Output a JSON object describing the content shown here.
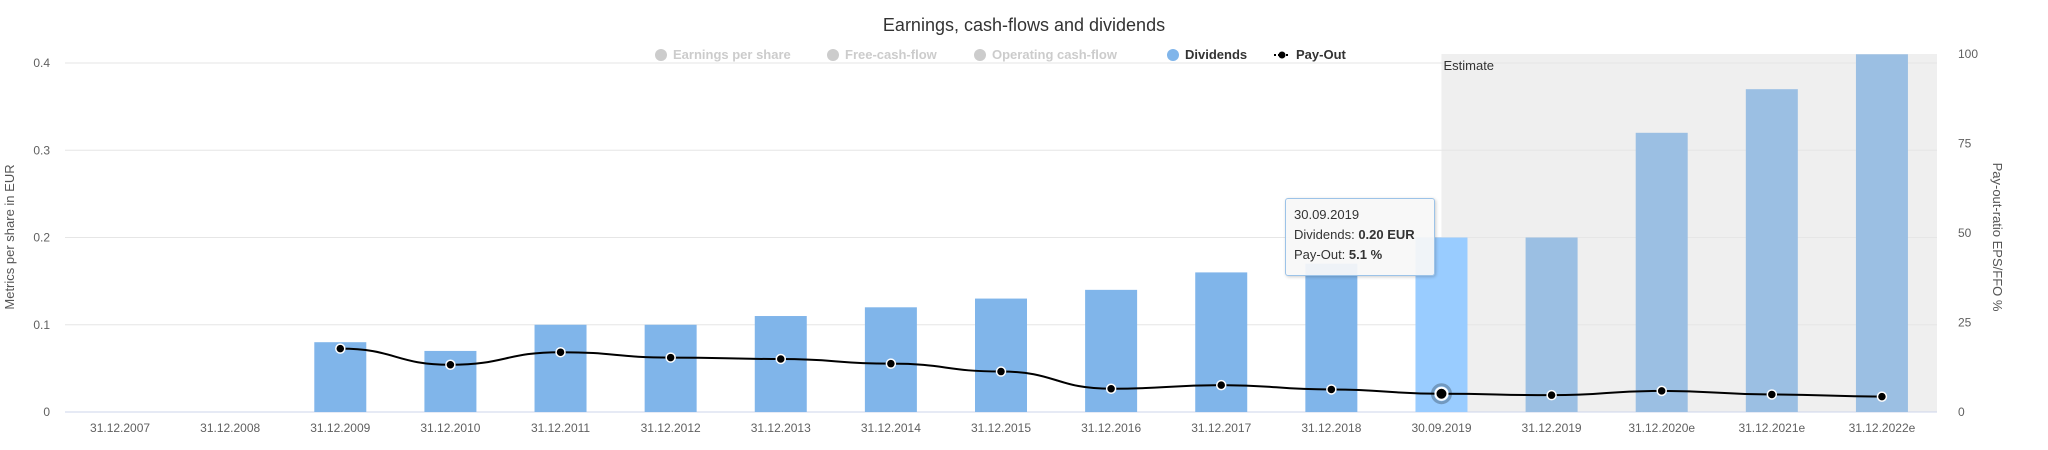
{
  "chart_data": {
    "type": "bar",
    "title": "Earnings, cash-flows and dividends",
    "categories": [
      "31.12.2007",
      "31.12.2008",
      "31.12.2009",
      "31.12.2010",
      "31.12.2011",
      "31.12.2012",
      "31.12.2013",
      "31.12.2014",
      "31.12.2015",
      "31.12.2016",
      "31.12.2017",
      "31.12.2018",
      "30.09.2019",
      "31.12.2019",
      "31.12.2020e",
      "31.12.2021e",
      "31.12.2022e"
    ],
    "series": [
      {
        "name": "Dividends",
        "type": "bar",
        "axis": "left",
        "color": "#80b5ea",
        "values": [
          null,
          null,
          0.08,
          0.07,
          0.1,
          0.1,
          0.11,
          0.12,
          0.13,
          0.14,
          0.16,
          0.17,
          0.2,
          0.2,
          0.32,
          0.37,
          0.41
        ]
      },
      {
        "name": "Pay-Out",
        "type": "line",
        "axis": "right",
        "color": "#000000",
        "values": [
          null,
          null,
          17.7,
          13.2,
          16.7,
          15.2,
          14.8,
          13.5,
          11.3,
          6.5,
          7.5,
          6.3,
          5.1,
          4.7,
          5.9,
          4.9,
          4.3
        ]
      }
    ],
    "legend": [
      {
        "label": "Earnings per share",
        "active": false
      },
      {
        "label": "Free-cash-flow",
        "active": false
      },
      {
        "label": "Operating cash-flow",
        "active": false
      },
      {
        "label": "Dividends",
        "active": true
      },
      {
        "label": "Pay-Out",
        "active": true
      }
    ],
    "legend_placement": "top-center",
    "ylabel": "Metrics per share in EUR",
    "ylim": [
      0,
      0.4
    ],
    "yticks": [
      "0",
      "0.1",
      "0.2",
      "0.3",
      "0.4"
    ],
    "y2label": "Pay-out-ratio EPS/FFO %",
    "y2lim": [
      0,
      100
    ],
    "y2ticks": [
      "0",
      "25",
      "50",
      "75",
      "100"
    ],
    "grid": true,
    "estimate_label": "Estimate",
    "estimate_from": "30.09.2019",
    "highlighted": "30.09.2019",
    "colors": {
      "bar": "#80b5ea",
      "bar_estimate": "#9bbfe3",
      "bar_hover": "#99ccff",
      "inactive": "#cccccc",
      "estimate_band": "#efefef"
    }
  },
  "tooltip": {
    "date": "30.09.2019",
    "dividends_label": "Dividends: ",
    "dividends_value": "0.20 EUR",
    "payout_label": "Pay-Out: ",
    "payout_value": "5.1 %"
  }
}
